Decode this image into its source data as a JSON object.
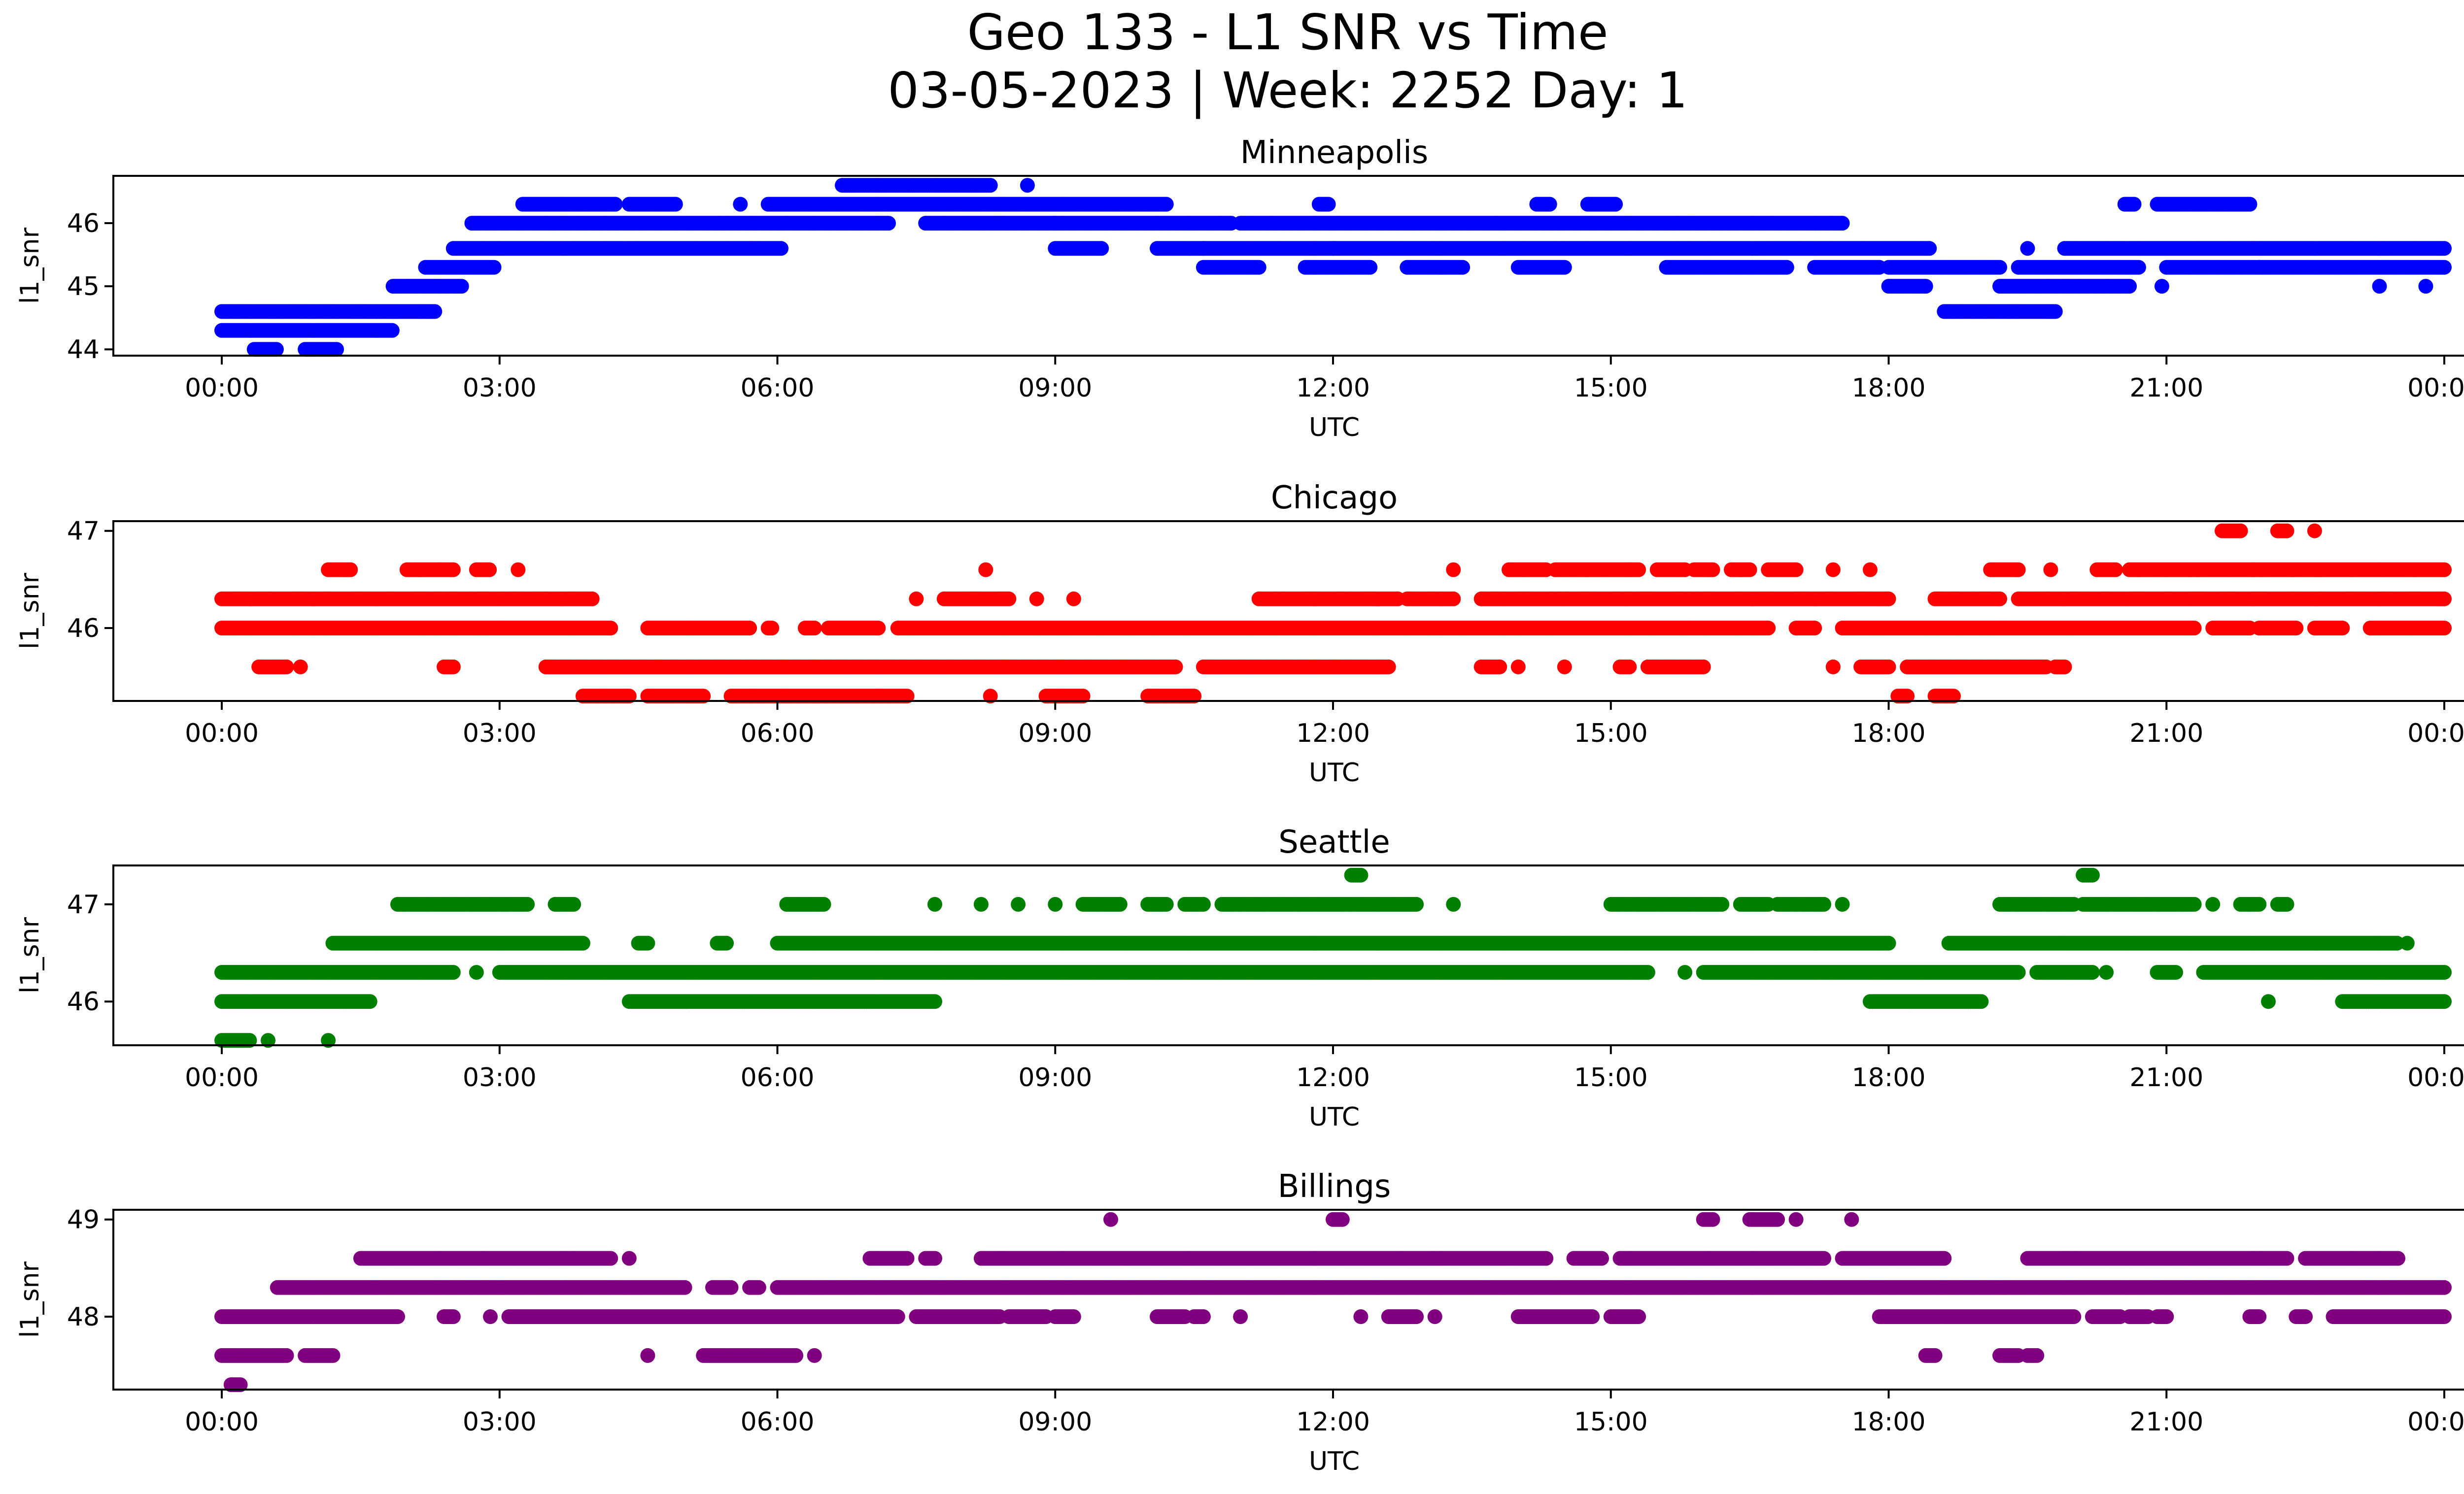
{
  "figure": {
    "title_line1": "Geo 133 - L1 SNR vs Time",
    "title_line2": "03-05-2023 | Week: 2252 Day: 1"
  },
  "chart_data": [
    {
      "type": "scatter",
      "title": "Minneapolis",
      "xlabel": "UTC",
      "ylabel": "l1_snr",
      "color": "#0000ff",
      "xlim": [
        0,
        24
      ],
      "ylim": [
        43.9,
        46.75
      ],
      "x_ticks": [
        "00:00",
        "03:00",
        "06:00",
        "09:00",
        "12:00",
        "15:00",
        "18:00",
        "21:00",
        "00:00"
      ],
      "y_ticks": [
        44,
        45,
        46
      ],
      "series": [
        {
          "y": 44.0,
          "runs": [
            [
              0.35,
              0.6
            ],
            [
              0.9,
              1.25
            ]
          ]
        },
        {
          "y": 44.3,
          "runs": [
            [
              0,
              1.85
            ]
          ]
        },
        {
          "y": 44.6,
          "runs": [
            [
              0,
              2.3
            ]
          ]
        },
        {
          "y": 45.0,
          "runs": [
            [
              1.85,
              2.6
            ],
            [
              18.0,
              18.4
            ],
            [
              19.2,
              20.6
            ],
            [
              20.95,
              20.95
            ]
          ]
        },
        {
          "y": 45.3,
          "runs": [
            [
              2.2,
              2.95
            ],
            [
              10.6,
              11.2
            ],
            [
              11.7,
              12.4
            ],
            [
              12.8,
              13.4
            ],
            [
              14.0,
              14.5
            ],
            [
              15.6,
              16.9
            ],
            [
              17.2,
              17.9
            ],
            [
              18.0,
              19.2
            ],
            [
              19.4,
              20.7
            ],
            [
              21.0,
              22.0
            ],
            [
              22.0,
              24.0
            ]
          ]
        },
        {
          "y": 44.6,
          "runs": [
            [
              18.6,
              19.8
            ]
          ]
        },
        {
          "y": 45.6,
          "runs": [
            [
              2.5,
              6.05
            ],
            [
              9.0,
              9.5
            ],
            [
              10.1,
              10.6
            ],
            [
              10.6,
              12.0
            ],
            [
              12.0,
              18.45
            ],
            [
              19.5,
              19.5
            ],
            [
              19.9,
              24.0
            ]
          ]
        },
        {
          "y": 46.0,
          "runs": [
            [
              2.7,
              7.2
            ],
            [
              7.6,
              9.0
            ],
            [
              9.0,
              10.9
            ],
            [
              11.0,
              17.5
            ]
          ]
        },
        {
          "y": 46.3,
          "runs": [
            [
              3.25,
              4.25
            ],
            [
              4.4,
              4.9
            ],
            [
              5.6,
              5.6
            ],
            [
              5.9,
              10.2
            ],
            [
              11.85,
              11.95
            ],
            [
              14.2,
              14.35
            ],
            [
              14.75,
              15.05
            ],
            [
              20.55,
              20.65
            ],
            [
              20.9,
              21.9
            ]
          ]
        },
        {
          "y": 46.6,
          "runs": [
            [
              6.7,
              8.3
            ],
            [
              8.7,
              8.7
            ]
          ]
        },
        {
          "y": 45.0,
          "runs": [
            [
              23.3,
              23.3
            ],
            [
              23.8,
              23.8
            ]
          ]
        }
      ]
    },
    {
      "type": "scatter",
      "title": "Chicago",
      "xlabel": "UTC",
      "ylabel": "l1_snr",
      "color": "#ff0000",
      "xlim": [
        0,
        24
      ],
      "ylim": [
        45.25,
        47.1
      ],
      "x_ticks": [
        "00:00",
        "03:00",
        "06:00",
        "09:00",
        "12:00",
        "15:00",
        "18:00",
        "21:00",
        "00:00"
      ],
      "y_ticks": [
        46,
        47
      ],
      "series": [
        {
          "y": 45.3,
          "runs": [
            [
              3.9,
              4.4
            ],
            [
              4.6,
              5.2
            ],
            [
              5.5,
              7.4
            ],
            [
              8.3,
              8.3
            ],
            [
              8.9,
              9.3
            ],
            [
              10.0,
              10.5
            ],
            [
              18.1,
              18.2
            ],
            [
              18.5,
              18.7
            ]
          ]
        },
        {
          "y": 45.6,
          "runs": [
            [
              0.4,
              0.7
            ],
            [
              0.85,
              0.85
            ],
            [
              2.4,
              2.5
            ],
            [
              3.5,
              10.3
            ],
            [
              10.6,
              12.6
            ],
            [
              13.6,
              13.8
            ],
            [
              14.0,
              14.0
            ],
            [
              14.5,
              14.5
            ],
            [
              15.1,
              15.2
            ],
            [
              15.4,
              16.0
            ],
            [
              17.4,
              17.4
            ],
            [
              17.7,
              18.0
            ],
            [
              18.2,
              19.7
            ],
            [
              19.8,
              19.9
            ]
          ]
        },
        {
          "y": 46.0,
          "runs": [
            [
              0,
              4.2
            ],
            [
              4.6,
              5.7
            ],
            [
              5.9,
              5.95
            ],
            [
              6.3,
              6.4
            ],
            [
              6.55,
              7.1
            ],
            [
              7.3,
              16.7
            ],
            [
              17.0,
              17.2
            ],
            [
              17.5,
              21.3
            ],
            [
              21.5,
              21.9
            ],
            [
              22.0,
              22.4
            ],
            [
              22.6,
              22.9
            ],
            [
              23.2,
              24.0
            ]
          ]
        },
        {
          "y": 46.3,
          "runs": [
            [
              0,
              4.0
            ],
            [
              7.5,
              7.5
            ],
            [
              7.8,
              8.5
            ],
            [
              8.8,
              8.8
            ],
            [
              9.2,
              9.2
            ],
            [
              11.2,
              12.7
            ],
            [
              12.8,
              13.3
            ],
            [
              13.6,
              18.0
            ],
            [
              18.5,
              19.2
            ],
            [
              19.4,
              24.0
            ]
          ]
        },
        {
          "y": 46.6,
          "runs": [
            [
              1.15,
              1.4
            ],
            [
              2.0,
              2.5
            ],
            [
              2.75,
              2.9
            ],
            [
              3.2,
              3.2
            ],
            [
              8.25,
              8.25
            ],
            [
              13.3,
              13.3
            ],
            [
              13.9,
              14.3
            ],
            [
              14.4,
              15.3
            ],
            [
              15.5,
              15.8
            ],
            [
              15.9,
              16.1
            ],
            [
              16.3,
              16.5
            ],
            [
              16.7,
              17.0
            ],
            [
              17.4,
              17.4
            ],
            [
              17.8,
              17.8
            ],
            [
              19.1,
              19.4
            ],
            [
              19.75,
              19.75
            ],
            [
              20.25,
              20.45
            ],
            [
              20.6,
              24.0
            ]
          ]
        },
        {
          "y": 47.0,
          "runs": [
            [
              21.6,
              21.8
            ],
            [
              22.2,
              22.3
            ],
            [
              22.6,
              22.6
            ]
          ]
        }
      ]
    },
    {
      "type": "scatter",
      "title": "Seattle",
      "xlabel": "UTC",
      "ylabel": "l1_snr",
      "color": "#008000",
      "xlim": [
        0,
        24
      ],
      "ylim": [
        45.55,
        47.4
      ],
      "x_ticks": [
        "00:00",
        "03:00",
        "06:00",
        "09:00",
        "12:00",
        "15:00",
        "18:00",
        "21:00",
        "00:00"
      ],
      "y_ticks": [
        46,
        47
      ],
      "series": [
        {
          "y": 45.6,
          "runs": [
            [
              0,
              0.3
            ],
            [
              0.5,
              0.5
            ],
            [
              1.15,
              1.15
            ]
          ]
        },
        {
          "y": 46.0,
          "runs": [
            [
              0,
              1.6
            ],
            [
              4.4,
              7.7
            ],
            [
              17.8,
              19.0
            ],
            [
              22.1,
              22.1
            ],
            [
              22.9,
              24.0
            ]
          ]
        },
        {
          "y": 46.3,
          "runs": [
            [
              0,
              2.5
            ],
            [
              2.75,
              2.75
            ],
            [
              3.0,
              15.4
            ],
            [
              15.8,
              15.8
            ],
            [
              16.0,
              19.4
            ],
            [
              19.6,
              20.2
            ],
            [
              20.35,
              20.35
            ],
            [
              20.9,
              21.1
            ],
            [
              21.4,
              24.0
            ]
          ]
        },
        {
          "y": 46.6,
          "runs": [
            [
              1.2,
              3.9
            ],
            [
              4.5,
              4.6
            ],
            [
              5.35,
              5.45
            ],
            [
              6.0,
              18.0
            ],
            [
              18.65,
              23.5
            ],
            [
              23.6,
              23.6
            ]
          ]
        },
        {
          "y": 47.0,
          "runs": [
            [
              1.9,
              3.3
            ],
            [
              3.6,
              3.8
            ],
            [
              6.1,
              6.5
            ],
            [
              7.7,
              7.7
            ],
            [
              8.2,
              8.2
            ],
            [
              8.6,
              8.6
            ],
            [
              9.0,
              9.0
            ],
            [
              9.3,
              9.7
            ],
            [
              10.0,
              10.2
            ],
            [
              10.4,
              10.6
            ],
            [
              10.8,
              12.9
            ],
            [
              13.3,
              13.3
            ],
            [
              15.0,
              16.2
            ],
            [
              16.4,
              16.7
            ],
            [
              16.8,
              17.3
            ],
            [
              17.5,
              17.5
            ],
            [
              19.2,
              20.0
            ],
            [
              20.1,
              21.3
            ],
            [
              21.5,
              21.5
            ],
            [
              21.8,
              22.0
            ],
            [
              22.2,
              22.3
            ]
          ]
        },
        {
          "y": 47.3,
          "runs": [
            [
              12.2,
              12.3
            ],
            [
              20.1,
              20.2
            ]
          ]
        }
      ]
    },
    {
      "type": "scatter",
      "title": "Billings",
      "xlabel": "UTC",
      "ylabel": "l1_snr",
      "color": "#800080",
      "xlim": [
        0,
        24
      ],
      "ylim": [
        47.25,
        49.1
      ],
      "x_ticks": [
        "00:00",
        "03:00",
        "06:00",
        "09:00",
        "12:00",
        "15:00",
        "18:00",
        "21:00",
        "00:00"
      ],
      "y_ticks": [
        48,
        49
      ],
      "series": [
        {
          "y": 47.3,
          "runs": [
            [
              0.1,
              0.2
            ]
          ]
        },
        {
          "y": 47.6,
          "runs": [
            [
              0,
              0.7
            ],
            [
              0.9,
              1.2
            ],
            [
              4.6,
              4.6
            ],
            [
              5.2,
              6.2
            ],
            [
              6.4,
              6.4
            ],
            [
              18.4,
              18.5
            ],
            [
              19.2,
              19.4
            ],
            [
              19.5,
              19.6
            ]
          ]
        },
        {
          "y": 48.0,
          "runs": [
            [
              0,
              1.9
            ],
            [
              2.4,
              2.5
            ],
            [
              2.9,
              2.9
            ],
            [
              3.1,
              7.3
            ],
            [
              7.5,
              8.4
            ],
            [
              8.5,
              8.9
            ],
            [
              9.0,
              9.2
            ],
            [
              10.1,
              10.4
            ],
            [
              10.5,
              10.6
            ],
            [
              11.0,
              11.0
            ],
            [
              12.3,
              12.3
            ],
            [
              12.6,
              12.9
            ],
            [
              13.1,
              13.1
            ],
            [
              14.0,
              14.8
            ],
            [
              15.0,
              15.3
            ],
            [
              17.9,
              20.0
            ],
            [
              20.2,
              20.5
            ],
            [
              20.6,
              20.8
            ],
            [
              20.9,
              21.0
            ],
            [
              21.9,
              22.0
            ],
            [
              22.4,
              22.5
            ],
            [
              22.8,
              24.0
            ]
          ]
        },
        {
          "y": 48.3,
          "runs": [
            [
              0.6,
              5.0
            ],
            [
              5.3,
              5.5
            ],
            [
              5.7,
              5.8
            ],
            [
              6.0,
              24.0
            ]
          ]
        },
        {
          "y": 48.6,
          "runs": [
            [
              1.5,
              4.2
            ],
            [
              4.4,
              4.4
            ],
            [
              7.0,
              7.4
            ],
            [
              7.6,
              7.7
            ],
            [
              8.2,
              14.3
            ],
            [
              14.6,
              14.9
            ],
            [
              15.1,
              17.3
            ],
            [
              17.5,
              18.6
            ],
            [
              19.5,
              22.3
            ],
            [
              22.5,
              23.5
            ]
          ]
        },
        {
          "y": 49.0,
          "runs": [
            [
              9.6,
              9.6
            ],
            [
              12.0,
              12.1
            ],
            [
              16.0,
              16.1
            ],
            [
              16.5,
              16.8
            ],
            [
              17.0,
              17.0
            ],
            [
              17.6,
              17.6
            ]
          ]
        }
      ]
    }
  ]
}
